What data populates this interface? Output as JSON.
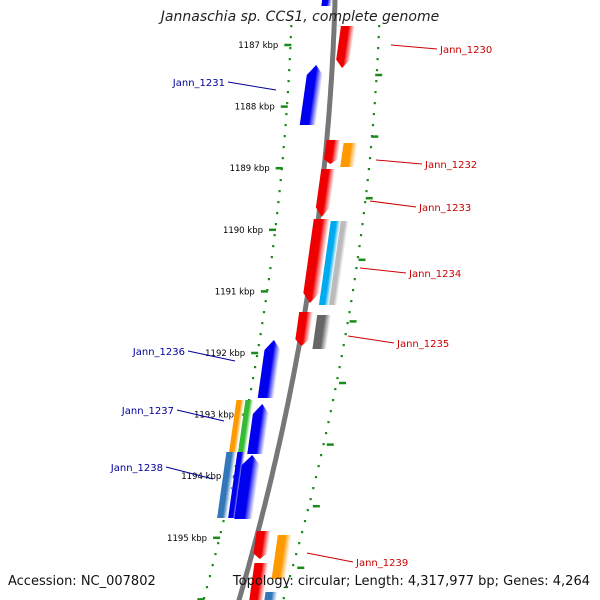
{
  "title": "Jannaschia sp. CCS1, complete genome",
  "accession": "Accession: NC_007802",
  "summary": "Topology: circular; Length: 4,317,977 bp; Genes: 4,264",
  "colors": {
    "backbone": "#777777",
    "tick_minor": "#1a8a1a",
    "ruler_text": "#000000",
    "plus_strand_label": "#cc0000",
    "minus_strand_label": "#000099"
  },
  "ruler": {
    "labels": [
      "1187 kbp",
      "1188 kbp",
      "1189 kbp",
      "1190 kbp",
      "1191 kbp",
      "1192 kbp",
      "1193 kbp",
      "1194 kbp",
      "1195 kbp"
    ]
  },
  "genes_plus": [
    {
      "label": "Jann_1230",
      "color": "#ee0000"
    },
    {
      "label": "Jann_1232",
      "color": "#ee0000"
    },
    {
      "label": "Jann_1233",
      "color": "#ee0000"
    },
    {
      "label": "Jann_1234",
      "color": "#ee0000"
    },
    {
      "label": "Jann_1235",
      "color": "#ee0000"
    },
    {
      "label": "Jann_1239",
      "color": "#ee0000"
    }
  ],
  "genes_minus": [
    {
      "label": "Jann_1231",
      "color": "#0000ee"
    },
    {
      "label": "Jann_1236",
      "color": "#0000ee"
    },
    {
      "label": "Jann_1237",
      "color": "#0000ee"
    },
    {
      "label": "Jann_1238",
      "color": "#0000ee"
    }
  ],
  "feature_colors": {
    "gene_plus": "#ee0000",
    "gene_minus": "#0000ee",
    "orange": "#ff9900",
    "cyan": "#00aaee",
    "light_gray": "#bbbbbb",
    "dark_gray": "#666666",
    "green": "#33bb33",
    "steel_blue": "#3377bb"
  }
}
